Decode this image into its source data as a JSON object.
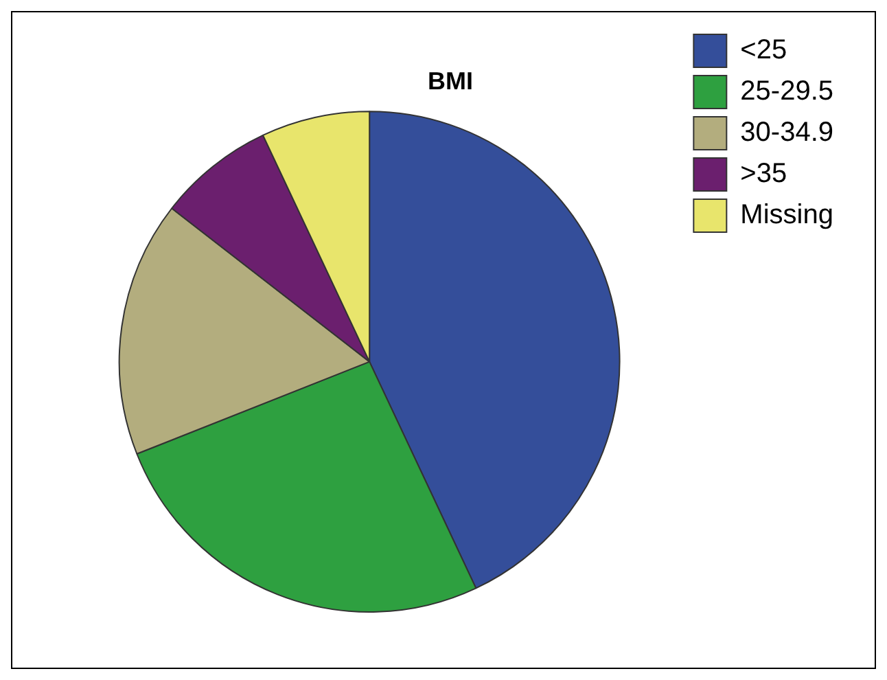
{
  "chart_data": {
    "type": "pie",
    "title": "BMI",
    "categories": [
      "<25",
      "25-29.5",
      "30-34.9",
      ">35",
      "Missing"
    ],
    "values": [
      43,
      26,
      16.5,
      7.5,
      7
    ],
    "colors": [
      "#344e9a",
      "#2ea040",
      "#b3ad7e",
      "#6b1f6e",
      "#e8e56c"
    ],
    "legend": "right"
  }
}
